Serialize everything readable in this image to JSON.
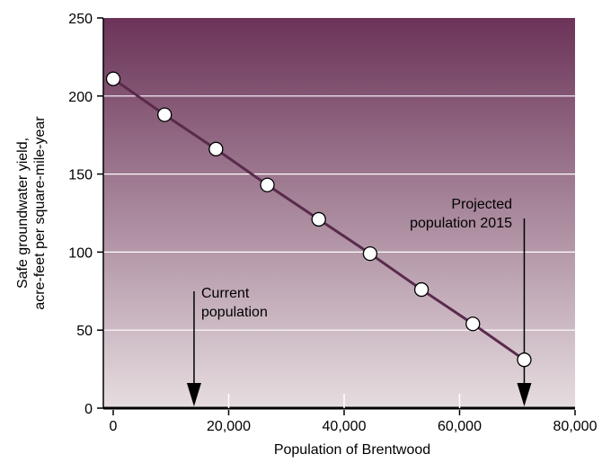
{
  "chart_data": {
    "type": "line",
    "xlabel": "Population of Brentwood",
    "ylabel": [
      "Safe groundwater yield,",
      "acre-feet per square-mile-year"
    ],
    "xlim": [
      0,
      80000
    ],
    "ylim": [
      0,
      250
    ],
    "x_ticks": [
      0,
      20000,
      40000,
      60000,
      80000
    ],
    "x_tick_labels": [
      "0",
      "20,000",
      "40,000",
      "60,000",
      "80,000"
    ],
    "y_ticks": [
      0,
      50,
      100,
      150,
      200,
      250
    ],
    "y_tick_labels": [
      "0",
      "50",
      "100",
      "150",
      "200",
      "250"
    ],
    "grid": "horizontal",
    "series": [
      {
        "x": [
          0,
          8900,
          17800,
          26700,
          35600,
          44500,
          53400,
          62300,
          71200
        ],
        "y": [
          211,
          188,
          166,
          143,
          121,
          99,
          76,
          54,
          31
        ]
      }
    ],
    "annotations": [
      {
        "lines": [
          "Current",
          "population"
        ],
        "x": 14000
      },
      {
        "lines": [
          "Projected",
          "population 2015"
        ],
        "x": 71200
      }
    ],
    "colors": {
      "background_top": "#6b3358",
      "background_bottom": "#e6dde0",
      "line": "#5a2a4c",
      "marker_fill": "#ffffff",
      "grid": "#ffffff"
    }
  }
}
